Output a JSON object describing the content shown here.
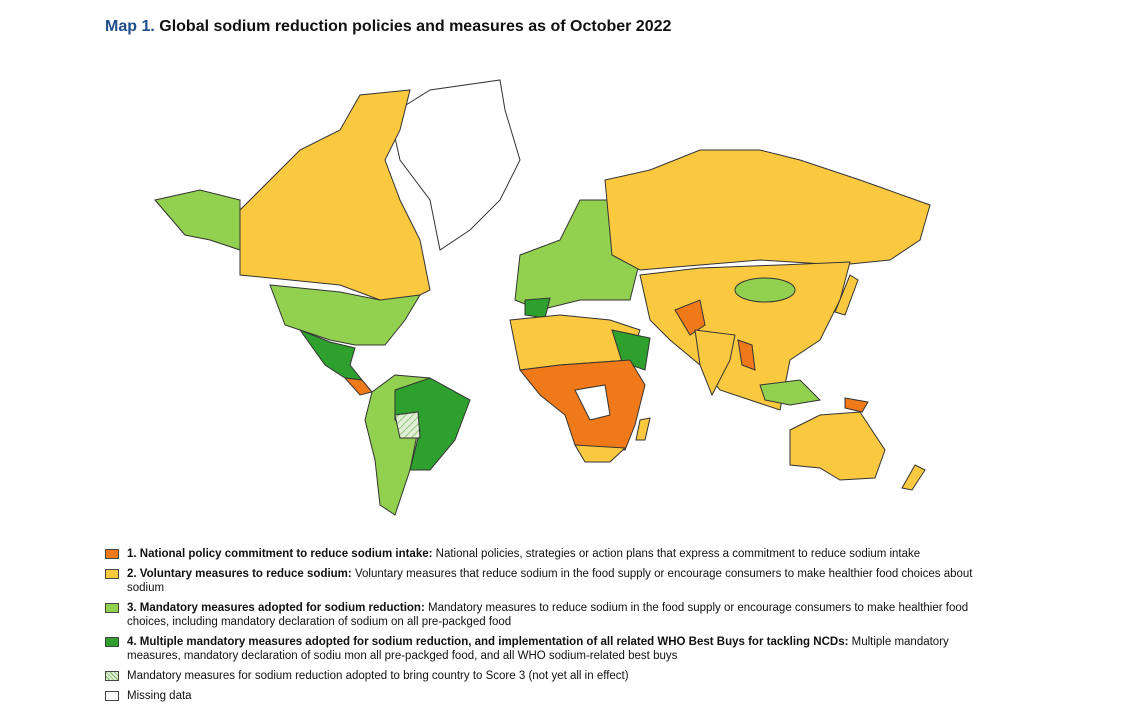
{
  "title": {
    "prefix": "Map 1.",
    "text": "Global sodium reduction policies and measures as of October 2022"
  },
  "legend": [
    {
      "label": "1. National policy commitment to reduce sodium intake:",
      "description": "National policies, strategies or action plans that express a commitment to reduce sodium intake",
      "color": "#f07a1a"
    },
    {
      "label": "2. Voluntary measures to reduce sodium:",
      "description": "Voluntary measures that reduce sodium in the food supply or encourage consumers to make healthier food choices about sodium",
      "color": "#fac940"
    },
    {
      "label": "3. Mandatory measures adopted for sodium reduction:",
      "description": "Mandatory measures to reduce sodium in the food supply or encourage consumers to make healthier food choices, including mandatory declaration of sodium on all pre-packged food",
      "color": "#92d050"
    },
    {
      "label": "4. Multiple mandatory measures adopted for sodium reduction, and implementation of all related WHO Best Buys for tackling NCDs:",
      "description": "Multiple mandatory measures, mandatory declaration of sodiu mon all pre-packged food, and all WHO sodium-related best buys",
      "color": "#2ea02e"
    },
    {
      "description": "Mandatory measures for sodium reduction adopted to bring country to Score 3 (not yet all in effect)",
      "color": "#e2f0d9",
      "pattern": "hatched"
    },
    {
      "description": "Missing data",
      "color": "#ffffff"
    }
  ]
}
